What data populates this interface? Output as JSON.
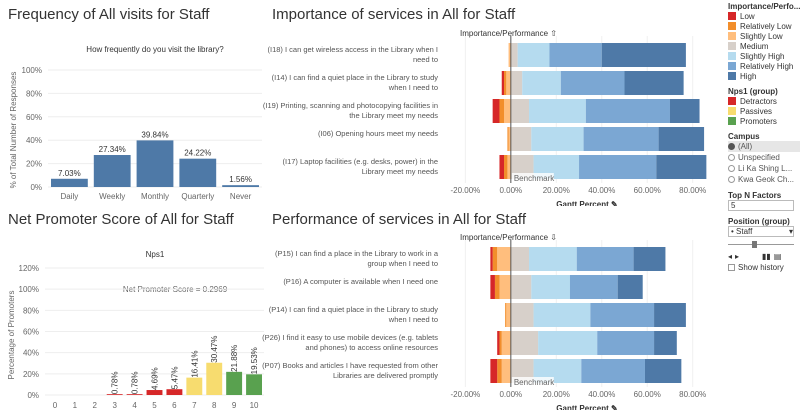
{
  "panels": {
    "frequency_title": "Frequency of All visits for Staff",
    "importance_title": "Importance of services in All for Staff",
    "nps_title": "Net Promoter Score of All for Staff",
    "performance_title": "Performance of services in All for Staff"
  },
  "frequency": {
    "subtitle": "How frequently do you visit the library?",
    "ylabel": "% of Total Number of Responses",
    "yticks": [
      "0%",
      "20%",
      "40%",
      "60%",
      "80%",
      "100%"
    ]
  },
  "nps": {
    "subtitle": "Nps1",
    "ylabel": "Percentage of Promoters",
    "score_label": "Net Promoter Score = 0.2969",
    "yticks": [
      "0%",
      "20%",
      "40%",
      "60%",
      "80%",
      "100%",
      "120%"
    ]
  },
  "gantt": {
    "header": "Importance/Performance",
    "xlabel": "Gantt Percent",
    "benchmark": "Benchmark",
    "xticks": [
      "-20.00%",
      "0.00%",
      "20.00%",
      "40.00%",
      "60.00%",
      "80.00%"
    ]
  },
  "chart_data": [
    {
      "type": "bar",
      "categories": [
        "Daily",
        "Weekly",
        "Monthly",
        "Quarterly",
        "Never"
      ],
      "values": [
        7.03,
        27.34,
        39.84,
        24.22,
        1.56
      ],
      "labels": [
        "7.03%",
        "27.34%",
        "39.84%",
        "24.22%",
        "1.56%"
      ],
      "ylim": [
        0,
        100
      ]
    },
    {
      "type": "bar",
      "categories": [
        "0",
        "1",
        "2",
        "3",
        "4",
        "5",
        "6",
        "7",
        "8",
        "9",
        "10"
      ],
      "values": [
        0,
        0,
        0,
        0.78,
        0.78,
        4.69,
        5.47,
        16.41,
        30.47,
        21.88,
        19.53
      ],
      "labels": [
        "",
        "",
        "",
        "0.78%",
        "0.78%",
        "4.69%",
        "5.47%",
        "16.41%",
        "30.47%",
        "21.88%",
        "19.53%"
      ],
      "groups": [
        "Detractors",
        "Detractors",
        "Detractors",
        "Detractors",
        "Detractors",
        "Detractors",
        "Detractors",
        "Passives",
        "Passives",
        "Promoters",
        "Promoters"
      ],
      "ylim": [
        0,
        120
      ]
    },
    {
      "type": "bar",
      "stacked": true,
      "categories": [
        "(I18) I can get wireless access in the Library when I need to",
        "(I14) I can find a quiet place in the Library to study when I need to",
        "(I19) Printing, scanning and photocopying facilities in the Library meet my needs",
        "(I06) Opening hours meet my needs",
        "(I17) Laptop facilities (e.g. desks, power) in the Library meet my needs"
      ],
      "series": [
        {
          "name": "Low",
          "values": [
            0,
            -1,
            -3,
            0,
            -2
          ]
        },
        {
          "name": "Relatively Low",
          "values": [
            0,
            -1,
            -2,
            -0.5,
            -1.5
          ]
        },
        {
          "name": "Slightly Low",
          "values": [
            -1,
            -2,
            -3,
            -1,
            -1.5
          ]
        },
        {
          "name": "Medium",
          "values": [
            3,
            5,
            8,
            9,
            10
          ]
        },
        {
          "name": "Slightly High",
          "values": [
            14,
            17,
            25,
            23,
            20
          ]
        },
        {
          "name": "Relatively High",
          "values": [
            23,
            28,
            37,
            33,
            34
          ]
        },
        {
          "name": "High",
          "values": [
            37,
            26,
            13,
            20,
            22
          ]
        }
      ],
      "xlim": [
        -25,
        92
      ]
    },
    {
      "type": "bar",
      "stacked": true,
      "categories": [
        "(P15) I can find a place in the Library to work in a group when I need to",
        "(P16) A computer is available when I need one",
        "(P14) I can find a quiet place in the Library to study when I need to",
        "(P26) I find it easy to use mobile devices (e.g. tablets and phones) to access online resources",
        "(P07) Books and articles I have requested from other Libraries are delivered promptly"
      ],
      "series": [
        {
          "name": "Low",
          "values": [
            -1,
            -2,
            0,
            -1,
            -3
          ]
        },
        {
          "name": "Relatively Low",
          "values": [
            -2,
            -2,
            -0.5,
            -1,
            -2
          ]
        },
        {
          "name": "Slightly Low",
          "values": [
            -6,
            -5,
            -2,
            -4,
            -4
          ]
        },
        {
          "name": "Medium",
          "values": [
            8,
            9,
            10,
            12,
            10
          ]
        },
        {
          "name": "Slightly High",
          "values": [
            21,
            17,
            25,
            26,
            21
          ]
        },
        {
          "name": "Relatively High",
          "values": [
            25,
            21,
            28,
            25,
            28
          ]
        },
        {
          "name": "High",
          "values": [
            14,
            11,
            14,
            10,
            16
          ]
        }
      ],
      "xlim": [
        -25,
        92
      ]
    }
  ],
  "sidebar": {
    "legend_title": "Importance/Perfo...",
    "legend_items": [
      {
        "label": "Low",
        "color": "#d62728"
      },
      {
        "label": "Relatively Low",
        "color": "#f28e2b"
      },
      {
        "label": "Slightly Low",
        "color": "#ffbe7d"
      },
      {
        "label": "Medium",
        "color": "#d7d0ca"
      },
      {
        "label": "Slightly High",
        "color": "#b5dbef"
      },
      {
        "label": "Relatively High",
        "color": "#7ba7d3"
      },
      {
        "label": "High",
        "color": "#4e79a7"
      }
    ],
    "nps_title": "Nps1 (group)",
    "nps_items": [
      {
        "label": "Detractors",
        "color": "#d62728"
      },
      {
        "label": "Passives",
        "color": "#f7dc6f"
      },
      {
        "label": "Promoters",
        "color": "#59a14f"
      }
    ],
    "campus_title": "Campus",
    "campus_items": [
      "(All)",
      "Unspecified",
      "Li Ka Shing L...",
      "Kwa Geok Ch..."
    ],
    "topn_title": "Top N Factors",
    "topn_value": "5",
    "position_title": "Position (group)",
    "position_value": "Staff",
    "show_history": "Show history"
  }
}
